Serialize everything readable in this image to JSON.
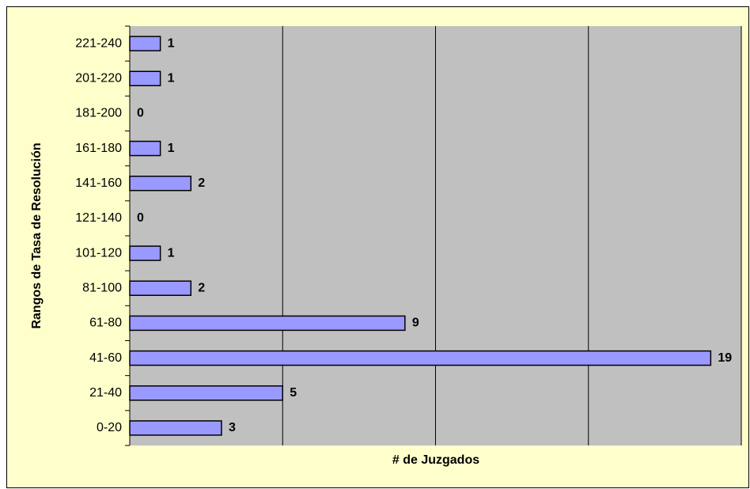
{
  "chart_data": {
    "type": "bar",
    "orientation": "horizontal",
    "x_label": "# de Juzgados",
    "y_label": "Rangos de Tasa de Resolución",
    "categories": [
      "0-20",
      "21-40",
      "41-60",
      "61-80",
      "81-100",
      "101-120",
      "121-140",
      "141-160",
      "161-180",
      "181-200",
      "201-220",
      "221-240"
    ],
    "values": [
      3,
      5,
      19,
      9,
      2,
      1,
      0,
      2,
      1,
      0,
      1,
      1
    ],
    "color": "#9999ff",
    "xlim": [
      0,
      20
    ],
    "xticks": [
      0,
      5,
      10,
      15,
      20
    ],
    "grid": true
  }
}
